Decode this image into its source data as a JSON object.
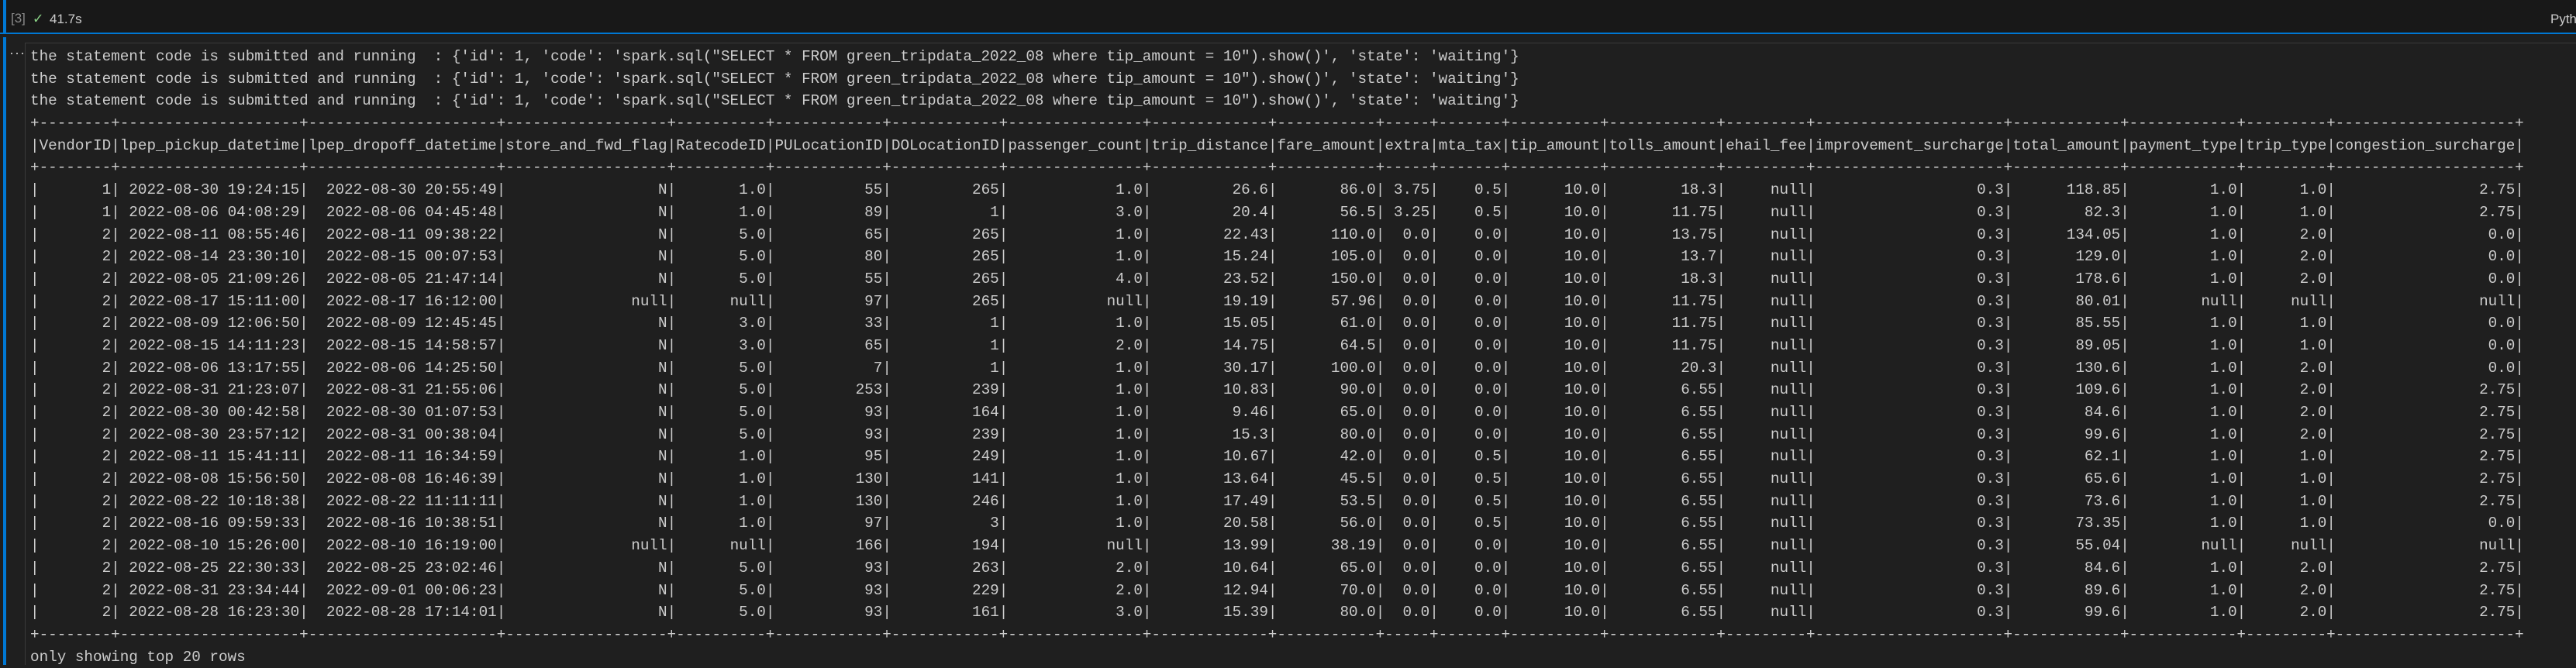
{
  "cell": {
    "execution_count": "[3]",
    "status_icon": "check-icon",
    "duration": "41.7s",
    "kernel_label": "Python",
    "more_icon": "ellipsis-icon",
    "accent_color": "#0078d4",
    "success_color": "#89d185"
  },
  "output": {
    "statement_lines": [
      "the statement code is submitted and running  : {'id': 1, 'code': 'spark.sql(\"SELECT * FROM green_tripdata_2022_08 where tip_amount = 10\").show()', 'state': 'waiting'}",
      "the statement code is submitted and running  : {'id': 1, 'code': 'spark.sql(\"SELECT * FROM green_tripdata_2022_08 where tip_amount = 10\").show()', 'state': 'waiting'}",
      "the statement code is submitted and running  : {'id': 1, 'code': 'spark.sql(\"SELECT * FROM green_tripdata_2022_08 where tip_amount = 10\").show()', 'state': 'waiting'}"
    ],
    "table": {
      "columns": [
        "VendorID",
        "lpep_pickup_datetime",
        "lpep_dropoff_datetime",
        "store_and_fwd_flag",
        "RatecodeID",
        "PULocationID",
        "DOLocationID",
        "passenger_count",
        "trip_distance",
        "fare_amount",
        "extra",
        "mta_tax",
        "tip_amount",
        "tolls_amount",
        "ehail_fee",
        "improvement_surcharge",
        "total_amount",
        "payment_type",
        "trip_type",
        "congestion_surcharge"
      ],
      "rows": [
        [
          "1",
          "2022-08-30 19:24:15",
          "2022-08-30 20:55:49",
          "N",
          "1.0",
          "55",
          "265",
          "1.0",
          "26.6",
          "86.0",
          "3.75",
          "0.5",
          "10.0",
          "18.3",
          "null",
          "0.3",
          "118.85",
          "1.0",
          "1.0",
          "2.75"
        ],
        [
          "1",
          "2022-08-06 04:08:29",
          "2022-08-06 04:45:48",
          "N",
          "1.0",
          "89",
          "1",
          "3.0",
          "20.4",
          "56.5",
          "3.25",
          "0.5",
          "10.0",
          "11.75",
          "null",
          "0.3",
          "82.3",
          "1.0",
          "1.0",
          "2.75"
        ],
        [
          "2",
          "2022-08-11 08:55:46",
          "2022-08-11 09:38:22",
          "N",
          "5.0",
          "65",
          "265",
          "1.0",
          "22.43",
          "110.0",
          "0.0",
          "0.0",
          "10.0",
          "13.75",
          "null",
          "0.3",
          "134.05",
          "1.0",
          "2.0",
          "0.0"
        ],
        [
          "2",
          "2022-08-14 23:30:10",
          "2022-08-15 00:07:53",
          "N",
          "5.0",
          "80",
          "265",
          "1.0",
          "15.24",
          "105.0",
          "0.0",
          "0.0",
          "10.0",
          "13.7",
          "null",
          "0.3",
          "129.0",
          "1.0",
          "2.0",
          "0.0"
        ],
        [
          "2",
          "2022-08-05 21:09:26",
          "2022-08-05 21:47:14",
          "N",
          "5.0",
          "55",
          "265",
          "4.0",
          "23.52",
          "150.0",
          "0.0",
          "0.0",
          "10.0",
          "18.3",
          "null",
          "0.3",
          "178.6",
          "1.0",
          "2.0",
          "0.0"
        ],
        [
          "2",
          "2022-08-17 15:11:00",
          "2022-08-17 16:12:00",
          "null",
          "null",
          "97",
          "265",
          "null",
          "19.19",
          "57.96",
          "0.0",
          "0.0",
          "10.0",
          "11.75",
          "null",
          "0.3",
          "80.01",
          "null",
          "null",
          "null"
        ],
        [
          "2",
          "2022-08-09 12:06:50",
          "2022-08-09 12:45:45",
          "N",
          "3.0",
          "33",
          "1",
          "1.0",
          "15.05",
          "61.0",
          "0.0",
          "0.0",
          "10.0",
          "11.75",
          "null",
          "0.3",
          "85.55",
          "1.0",
          "1.0",
          "0.0"
        ],
        [
          "2",
          "2022-08-15 14:11:23",
          "2022-08-15 14:58:57",
          "N",
          "3.0",
          "65",
          "1",
          "2.0",
          "14.75",
          "64.5",
          "0.0",
          "0.0",
          "10.0",
          "11.75",
          "null",
          "0.3",
          "89.05",
          "1.0",
          "1.0",
          "0.0"
        ],
        [
          "2",
          "2022-08-06 13:17:55",
          "2022-08-06 14:25:50",
          "N",
          "5.0",
          "7",
          "1",
          "1.0",
          "30.17",
          "100.0",
          "0.0",
          "0.0",
          "10.0",
          "20.3",
          "null",
          "0.3",
          "130.6",
          "1.0",
          "2.0",
          "0.0"
        ],
        [
          "2",
          "2022-08-31 21:23:07",
          "2022-08-31 21:55:06",
          "N",
          "5.0",
          "253",
          "239",
          "1.0",
          "10.83",
          "90.0",
          "0.0",
          "0.0",
          "10.0",
          "6.55",
          "null",
          "0.3",
          "109.6",
          "1.0",
          "2.0",
          "2.75"
        ],
        [
          "2",
          "2022-08-30 00:42:58",
          "2022-08-30 01:07:53",
          "N",
          "5.0",
          "93",
          "164",
          "1.0",
          "9.46",
          "65.0",
          "0.0",
          "0.0",
          "10.0",
          "6.55",
          "null",
          "0.3",
          "84.6",
          "1.0",
          "2.0",
          "2.75"
        ],
        [
          "2",
          "2022-08-30 23:57:12",
          "2022-08-31 00:38:04",
          "N",
          "5.0",
          "93",
          "239",
          "1.0",
          "15.3",
          "80.0",
          "0.0",
          "0.0",
          "10.0",
          "6.55",
          "null",
          "0.3",
          "99.6",
          "1.0",
          "2.0",
          "2.75"
        ],
        [
          "2",
          "2022-08-11 15:41:11",
          "2022-08-11 16:34:59",
          "N",
          "1.0",
          "95",
          "249",
          "1.0",
          "10.67",
          "42.0",
          "0.0",
          "0.5",
          "10.0",
          "6.55",
          "null",
          "0.3",
          "62.1",
          "1.0",
          "1.0",
          "2.75"
        ],
        [
          "2",
          "2022-08-08 15:56:50",
          "2022-08-08 16:46:39",
          "N",
          "1.0",
          "130",
          "141",
          "1.0",
          "13.64",
          "45.5",
          "0.0",
          "0.5",
          "10.0",
          "6.55",
          "null",
          "0.3",
          "65.6",
          "1.0",
          "1.0",
          "2.75"
        ],
        [
          "2",
          "2022-08-22 10:18:38",
          "2022-08-22 11:11:11",
          "N",
          "1.0",
          "130",
          "246",
          "1.0",
          "17.49",
          "53.5",
          "0.0",
          "0.5",
          "10.0",
          "6.55",
          "null",
          "0.3",
          "73.6",
          "1.0",
          "1.0",
          "2.75"
        ],
        [
          "2",
          "2022-08-16 09:59:33",
          "2022-08-16 10:38:51",
          "N",
          "1.0",
          "97",
          "3",
          "1.0",
          "20.58",
          "56.0",
          "0.0",
          "0.5",
          "10.0",
          "6.55",
          "null",
          "0.3",
          "73.35",
          "1.0",
          "1.0",
          "0.0"
        ],
        [
          "2",
          "2022-08-10 15:26:00",
          "2022-08-10 16:19:00",
          "null",
          "null",
          "166",
          "194",
          "null",
          "13.99",
          "38.19",
          "0.0",
          "0.0",
          "10.0",
          "6.55",
          "null",
          "0.3",
          "55.04",
          "null",
          "null",
          "null"
        ],
        [
          "2",
          "2022-08-25 22:30:33",
          "2022-08-25 23:02:46",
          "N",
          "5.0",
          "93",
          "263",
          "2.0",
          "10.64",
          "65.0",
          "0.0",
          "0.0",
          "10.0",
          "6.55",
          "null",
          "0.3",
          "84.6",
          "1.0",
          "2.0",
          "2.75"
        ],
        [
          "2",
          "2022-08-31 23:34:44",
          "2022-09-01 00:06:23",
          "N",
          "5.0",
          "93",
          "229",
          "2.0",
          "12.94",
          "70.0",
          "0.0",
          "0.0",
          "10.0",
          "6.55",
          "null",
          "0.3",
          "89.6",
          "1.0",
          "2.0",
          "2.75"
        ],
        [
          "2",
          "2022-08-28 16:23:30",
          "2022-08-28 17:14:01",
          "N",
          "5.0",
          "93",
          "161",
          "3.0",
          "15.39",
          "80.0",
          "0.0",
          "0.0",
          "10.0",
          "6.55",
          "null",
          "0.3",
          "99.6",
          "1.0",
          "2.0",
          "2.75"
        ]
      ]
    },
    "footer": "only showing top 20 rows"
  }
}
